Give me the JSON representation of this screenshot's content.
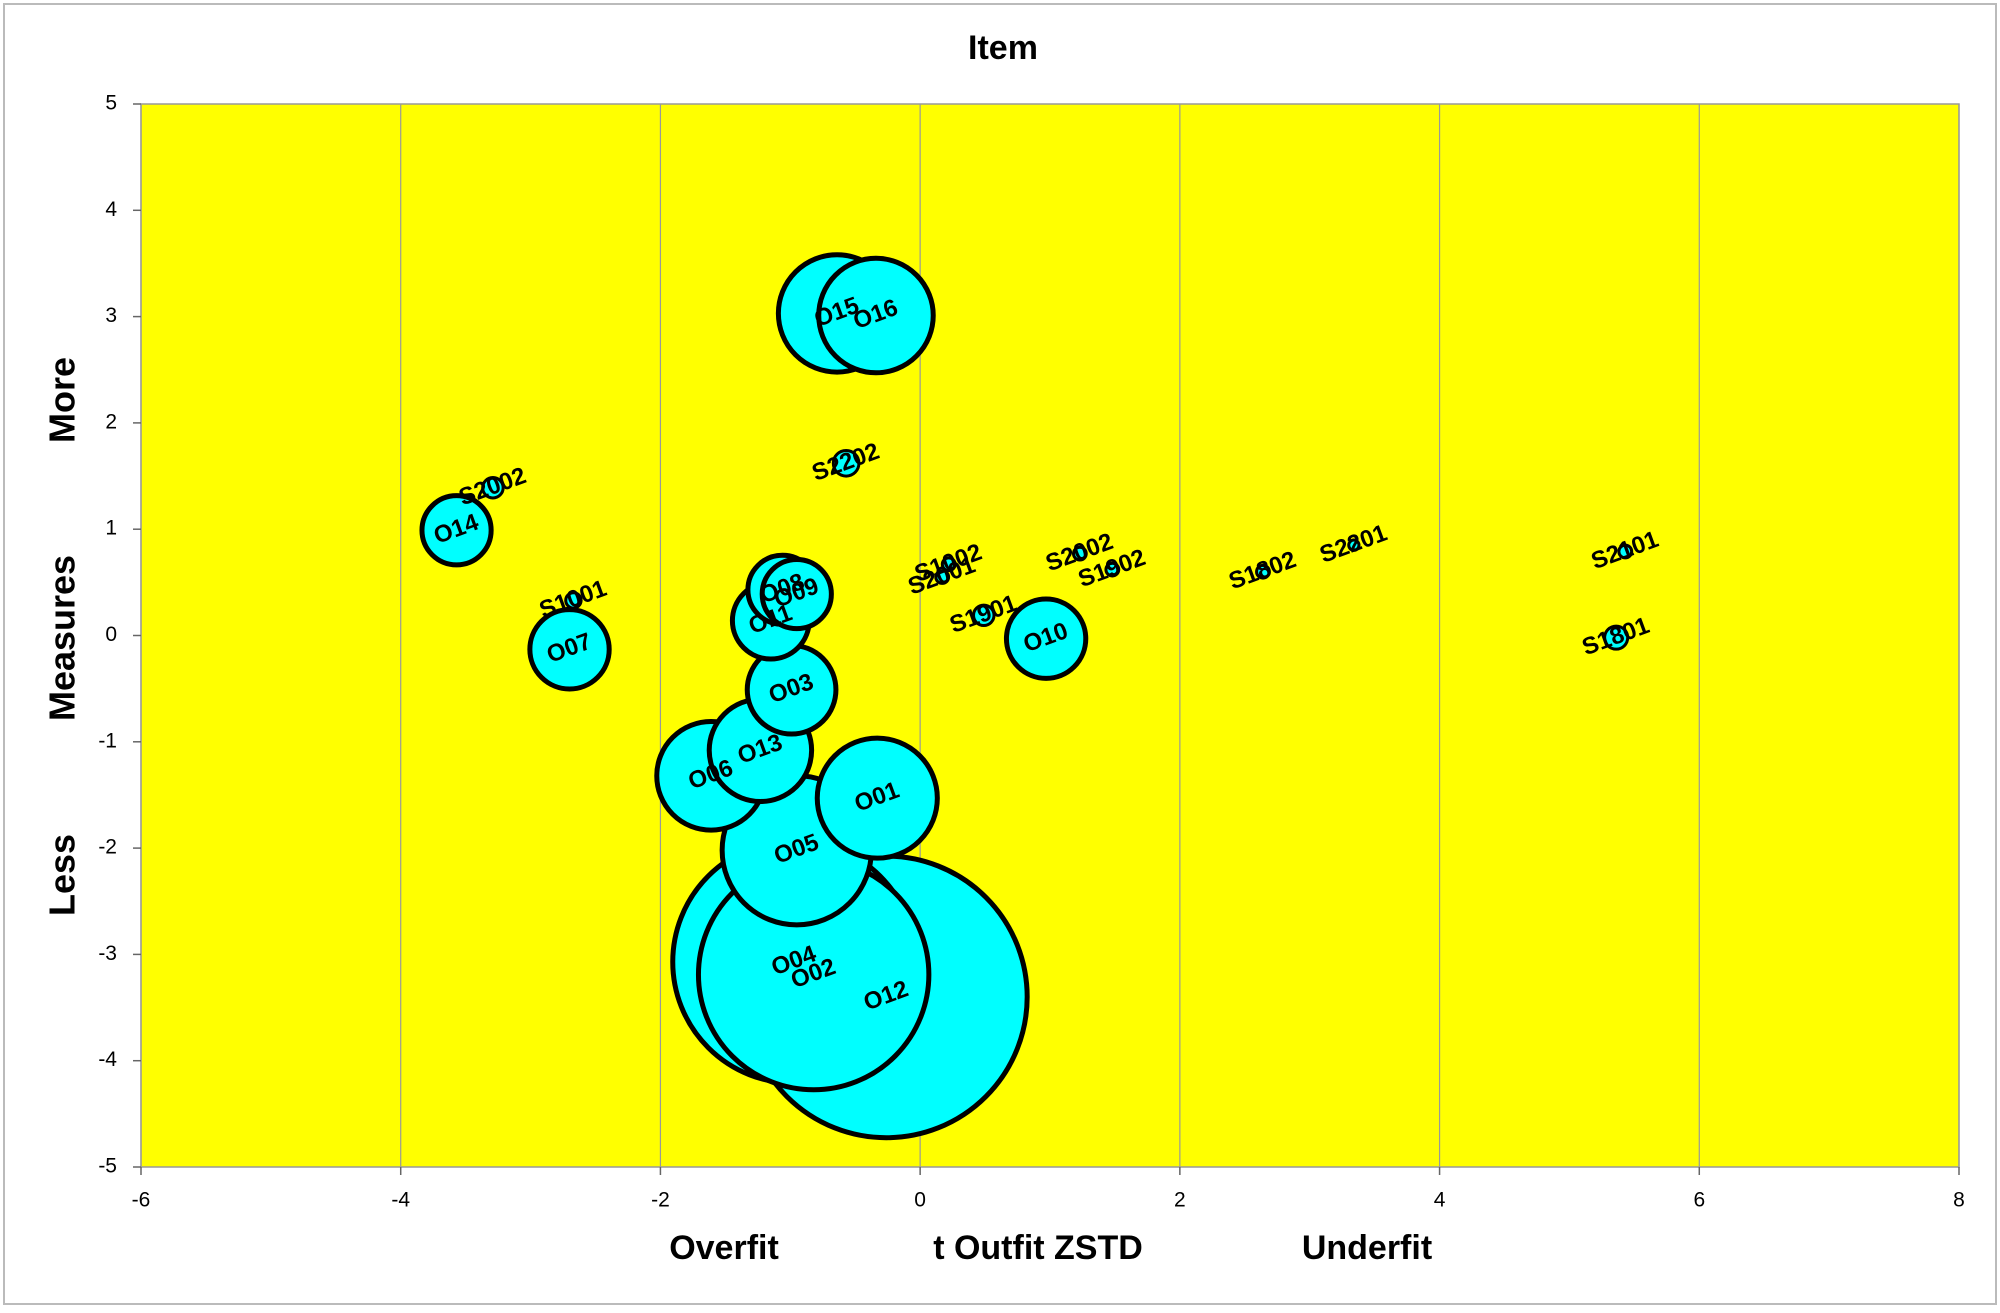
{
  "chart_data": {
    "type": "bubble",
    "title": "Item",
    "y_labels": [
      "More",
      "Measures",
      "Less"
    ],
    "x_labels": [
      "Overfit",
      "t Outfit ZSTD",
      "Underfit"
    ],
    "labels": [
      "O12",
      "O04",
      "O02",
      "O05",
      "O01",
      "O15",
      "O16",
      "O06",
      "O13",
      "O03",
      "O10",
      "O07",
      "O11",
      "O08",
      "O09",
      "O14",
      "S2202",
      "S2002",
      "S1001",
      "S1002",
      "S2001",
      "S1901",
      "S2002",
      "S1902",
      "S1802",
      "S2201",
      "S2101",
      "S1801"
    ],
    "x": [
      -0.26,
      -0.97,
      -0.82,
      -0.95,
      -0.33,
      -0.64,
      -0.34,
      -1.61,
      -1.23,
      -0.99,
      0.97,
      -2.7,
      -1.15,
      -1.06,
      -0.95,
      -3.57,
      -0.57,
      -3.29,
      -2.67,
      0.22,
      0.17,
      0.49,
      1.23,
      1.48,
      2.64,
      3.34,
      5.43,
      5.36
    ],
    "y": [
      -3.4,
      -3.07,
      -3.19,
      -2.02,
      -1.53,
      3.03,
      3.01,
      -1.32,
      -1.08,
      -0.51,
      -0.03,
      -0.13,
      0.14,
      0.43,
      0.39,
      0.99,
      1.62,
      1.39,
      0.33,
      0.67,
      0.55,
      0.19,
      0.77,
      0.62,
      0.6,
      0.85,
      0.79,
      -0.02
    ],
    "sizes": [
      121,
      90,
      81,
      34,
      22,
      21,
      20,
      18,
      16,
      12,
      9.6,
      9.6,
      9,
      7.3,
      7.3,
      7.3,
      1,
      0.64,
      0.36,
      0.25,
      0.25,
      0.64,
      0.25,
      0.25,
      0.25,
      0.16,
      0.25,
      0.81
    ],
    "color": "#00ffff",
    "plot_color": "#ffff00",
    "xlim": [
      -6,
      8
    ],
    "xticks": [
      -6,
      -4,
      -2,
      0,
      2,
      4,
      6,
      8
    ],
    "ylim": [
      -5,
      5
    ],
    "yticks": [
      -5,
      -4,
      -3,
      -2,
      -1,
      0,
      1,
      2,
      3,
      4,
      5
    ],
    "grid": "x"
  }
}
